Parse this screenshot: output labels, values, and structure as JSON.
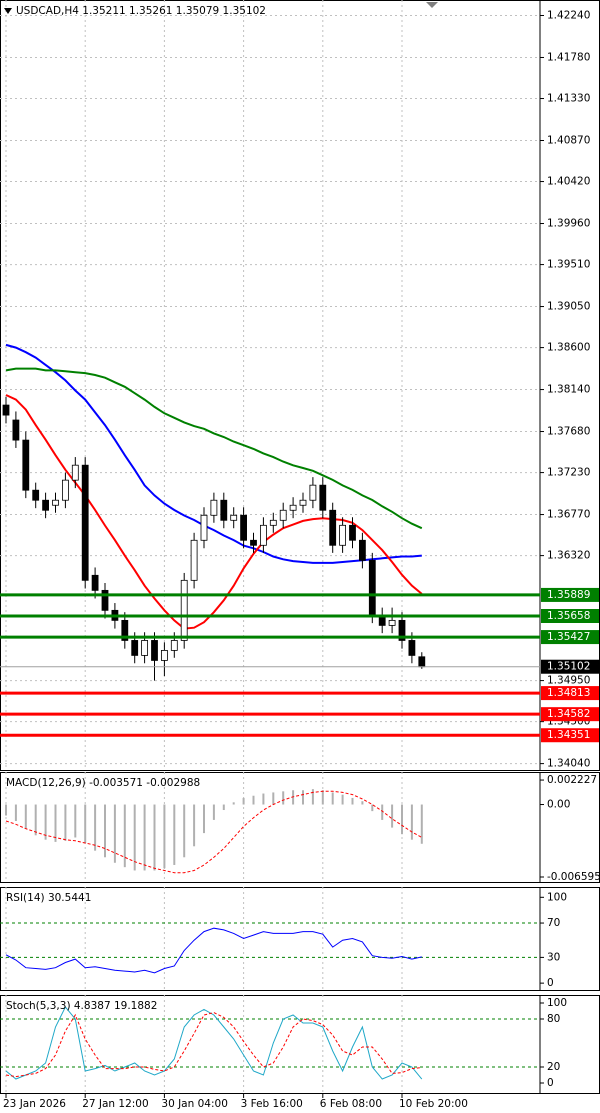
{
  "chart_data": [
    {
      "type": "candlestick",
      "title": "USDCAD,H4  1.35211 1.35261 1.35079 1.35102",
      "categories": [
        "23 Jan 2026",
        null,
        null,
        null,
        null,
        null,
        null,
        null,
        "27 Jan 12:00",
        null,
        null,
        null,
        null,
        null,
        null,
        null,
        "30 Jan 04:00",
        null,
        null,
        null,
        null,
        null,
        null,
        null,
        "3 Feb 16:00",
        null,
        null,
        null,
        null,
        null,
        null,
        null,
        "6 Feb 08:00",
        null,
        null,
        null,
        null,
        null,
        null,
        null,
        "10 Feb 20:00",
        null,
        null
      ],
      "open": [
        1.3797,
        1.37806,
        1.37586,
        1.37037,
        1.36927,
        1.36872,
        1.36927,
        1.37147,
        1.37311,
        1.36104,
        1.35939,
        1.3572,
        1.3561,
        1.3539,
        1.35226,
        1.3539,
        1.35171,
        1.35281,
        1.3539,
        1.36049,
        1.36488,
        1.36762,
        1.36927,
        1.36707,
        1.36762,
        1.36488,
        1.36433,
        1.36652,
        1.36707,
        1.36817,
        1.36872,
        1.36927,
        1.37092,
        1.36817,
        1.36433,
        1.36652,
        1.36488,
        1.36268,
        1.35665,
        1.35555,
        1.3561,
        1.3539,
        1.35211
      ],
      "high": [
        1.3806,
        1.379,
        1.3768,
        1.3712,
        1.3701,
        1.3701,
        1.3723,
        1.374,
        1.374,
        1.3619,
        1.3602,
        1.358,
        1.357,
        1.3548,
        1.3548,
        1.3548,
        1.3537,
        1.3548,
        1.3613,
        1.3657,
        1.3685,
        1.3701,
        1.3701,
        1.3685,
        1.3685,
        1.3657,
        1.3674,
        1.3679,
        1.369,
        1.3696,
        1.3701,
        1.3718,
        1.3718,
        1.369,
        1.3674,
        1.3674,
        1.3657,
        1.3635,
        1.3575,
        1.3575,
        1.357,
        1.3548,
        1.35261
      ],
      "low": [
        1.3777,
        1.375,
        1.3695,
        1.3684,
        1.3673,
        1.3679,
        1.3684,
        1.3706,
        1.3596,
        1.3585,
        1.3563,
        1.3552,
        1.353,
        1.3514,
        1.3514,
        1.3495,
        1.35,
        1.352,
        1.353,
        1.3596,
        1.364,
        1.3668,
        1.3662,
        1.3662,
        1.364,
        1.3635,
        1.3635,
        1.3657,
        1.3662,
        1.3673,
        1.3679,
        1.3684,
        1.3673,
        1.3635,
        1.3635,
        1.364,
        1.3618,
        1.3558,
        1.3547,
        1.3547,
        1.353,
        1.3514,
        1.35079
      ],
      "close": [
        1.3786,
        1.37586,
        1.37037,
        1.36927,
        1.36817,
        1.36927,
        1.37147,
        1.37311,
        1.36049,
        1.35939,
        1.3572,
        1.3561,
        1.3539,
        1.35226,
        1.3539,
        1.35171,
        1.35281,
        1.3539,
        1.36049,
        1.36488,
        1.36762,
        1.36927,
        1.36707,
        1.36762,
        1.36488,
        1.36433,
        1.36652,
        1.36707,
        1.36817,
        1.36872,
        1.36927,
        1.37092,
        1.36817,
        1.36433,
        1.36652,
        1.36488,
        1.36268,
        1.35665,
        1.35555,
        1.3561,
        1.3539,
        1.35226,
        1.35102
      ],
      "overlays": [
        {
          "color": "#0000ff",
          "values": [
            1.3863,
            1.386,
            1.3855,
            1.3849,
            1.3841,
            1.3833,
            1.3824,
            1.3813,
            1.3803,
            1.3789,
            1.3775,
            1.3759,
            1.3742,
            1.3726,
            1.3709,
            1.3698,
            1.3689,
            1.3682,
            1.3676,
            1.3671,
            1.3665,
            1.366,
            1.3654,
            1.3649,
            1.3643,
            1.364,
            1.3636,
            1.3631,
            1.3628,
            1.3626,
            1.3625,
            1.3624,
            1.3624,
            1.3624,
            1.3625,
            1.3626,
            1.3627,
            1.3628,
            1.3629,
            1.363,
            1.3631,
            1.3631,
            1.3632
          ]
        },
        {
          "color": "#008000",
          "values": [
            1.3835,
            1.3837,
            1.3837,
            1.3837,
            1.3835,
            1.3835,
            1.3834,
            1.3833,
            1.3832,
            1.383,
            1.3827,
            1.3822,
            1.3817,
            1.381,
            1.3803,
            1.3795,
            1.3788,
            1.3783,
            1.3778,
            1.3774,
            1.3771,
            1.3766,
            1.3762,
            1.3757,
            1.3753,
            1.3749,
            1.3744,
            1.374,
            1.3735,
            1.3731,
            1.3728,
            1.3725,
            1.372,
            1.3715,
            1.3709,
            1.3704,
            1.3698,
            1.3693,
            1.3686,
            1.368,
            1.3673,
            1.3667,
            1.3662
          ]
        },
        {
          "color": "#ff0000",
          "values": [
            1.3808,
            1.3803,
            1.3792,
            1.3775,
            1.3759,
            1.3742,
            1.3726,
            1.3712,
            1.3698,
            1.3682,
            1.3665,
            1.3649,
            1.3632,
            1.3616,
            1.3599,
            1.3585,
            1.3572,
            1.3561,
            1.3552,
            1.3553,
            1.3559,
            1.357,
            1.3583,
            1.3599,
            1.3618,
            1.3634,
            1.3647,
            1.3655,
            1.3662,
            1.3666,
            1.367,
            1.3672,
            1.3673,
            1.3672,
            1.3671,
            1.3668,
            1.366,
            1.3649,
            1.3638,
            1.3625,
            1.3611,
            1.3599,
            1.359
          ]
        }
      ],
      "levels": [
        {
          "value": 1.35889,
          "color": "#008000"
        },
        {
          "value": 1.35658,
          "color": "#008000"
        },
        {
          "value": 1.35427,
          "color": "#008000"
        },
        {
          "value": 1.34813,
          "color": "#ff0000"
        },
        {
          "value": 1.34582,
          "color": "#ff0000"
        },
        {
          "value": 1.34351,
          "color": "#ff0000"
        }
      ],
      "ylim": [
        1.3397,
        1.4241
      ],
      "yticks": [
        {
          "value": 1.4224,
          "label": "1.42240"
        },
        {
          "value": 1.4178,
          "label": "1.41780"
        },
        {
          "value": 1.4133,
          "label": "1.41330"
        },
        {
          "value": 1.4087,
          "label": "1.40870"
        },
        {
          "value": 1.4042,
          "label": "1.40420"
        },
        {
          "value": 1.3996,
          "label": "1.39960"
        },
        {
          "value": 1.3951,
          "label": "1.39510"
        },
        {
          "value": 1.3905,
          "label": "1.39050"
        },
        {
          "value": 1.386,
          "label": "1.38600"
        },
        {
          "value": 1.3814,
          "label": "1.38140"
        },
        {
          "value": 1.3768,
          "label": "1.37680"
        },
        {
          "value": 1.3723,
          "label": "1.37230"
        },
        {
          "value": 1.3677,
          "label": "1.36770"
        },
        {
          "value": 1.3632,
          "label": "1.36320"
        },
        {
          "value": 1.3495,
          "label": "1.34950"
        },
        {
          "value": 1.345,
          "label": "1.34500"
        },
        {
          "value": 1.3404,
          "label": "1.34040"
        }
      ],
      "grid": true
    },
    {
      "type": "macd",
      "title": "MACD(12,26,9) -0.003571 -0.002988",
      "histogram": [
        -0.001,
        -0.0015,
        -0.0022,
        -0.0028,
        -0.0032,
        -0.0034,
        -0.0033,
        -0.003,
        -0.0035,
        -0.0042,
        -0.0048,
        -0.0053,
        -0.0057,
        -0.006,
        -0.006,
        -0.006,
        -0.0058,
        -0.0055,
        -0.0048,
        -0.0038,
        -0.0026,
        -0.0014,
        -0.0005,
        0.0002,
        0.0006,
        0.0008,
        0.001,
        0.0011,
        0.0012,
        0.0013,
        0.0013,
        0.0014,
        0.0013,
        0.0011,
        0.0009,
        0.0006,
        0.0003,
        -0.0006,
        -0.0014,
        -0.0021,
        -0.0027,
        -0.0032,
        -0.003571
      ],
      "signal": [
        -0.0015,
        -0.0018,
        -0.0022,
        -0.0025,
        -0.0028,
        -0.003,
        -0.0032,
        -0.0033,
        -0.0035,
        -0.0037,
        -0.004,
        -0.0044,
        -0.0048,
        -0.0052,
        -0.0055,
        -0.0058,
        -0.006,
        -0.0062,
        -0.0062,
        -0.006,
        -0.0055,
        -0.0048,
        -0.004,
        -0.003,
        -0.002,
        -0.0012,
        -0.0005,
        0.0,
        0.0004,
        0.0007,
        0.0009,
        0.0011,
        0.0012,
        0.0012,
        0.0011,
        0.0009,
        0.0005,
        0.0,
        -0.0006,
        -0.0013,
        -0.0019,
        -0.0025,
        -0.002988
      ],
      "histogram_color": "#b0b0b0",
      "signal_color": "#ff0000",
      "ylim": [
        -0.00705,
        0.00296
      ],
      "yticks": [
        0.002227,
        {
          "value": 0,
          "label": "0.00"
        },
        -0.006595
      ]
    },
    {
      "type": "line",
      "title": "RSI(14) 30.5441",
      "values": [
        33,
        27,
        18,
        17,
        16,
        18,
        24,
        28,
        18,
        19,
        17,
        15,
        14,
        13,
        15,
        12,
        17,
        20,
        38,
        50,
        60,
        64,
        62,
        58,
        52,
        56,
        60,
        58,
        58,
        58,
        60,
        60,
        57,
        42,
        50,
        52,
        48,
        32,
        30,
        29,
        31,
        28,
        30.5441
      ],
      "color": "#0000ff",
      "ylim": [
        -8,
        112
      ],
      "yticks": [
        0,
        30,
        70,
        100
      ],
      "levels": [
        30,
        70
      ]
    },
    {
      "type": "stochastic",
      "title": "Stoch(5,3,3) 4.8387 19.1882",
      "k": [
        15,
        5,
        10,
        15,
        25,
        70,
        95,
        80,
        15,
        18,
        22,
        15,
        20,
        25,
        15,
        10,
        15,
        30,
        70,
        85,
        92,
        85,
        70,
        55,
        35,
        15,
        10,
        50,
        80,
        85,
        75,
        75,
        70,
        40,
        15,
        45,
        70,
        20,
        5,
        10,
        25,
        20,
        4.8387
      ],
      "d": [
        10,
        8,
        10,
        12,
        18,
        35,
        65,
        85,
        55,
        35,
        18,
        18,
        18,
        20,
        20,
        17,
        15,
        20,
        40,
        62,
        85,
        88,
        82,
        70,
        52,
        35,
        20,
        25,
        45,
        70,
        80,
        78,
        73,
        60,
        40,
        35,
        45,
        45,
        30,
        12,
        13,
        18,
        19.1882
      ],
      "k_color": "#20a8c8",
      "d_color": "#ff0000",
      "ylim": [
        -12.5,
        110
      ],
      "yticks": [
        0,
        20,
        80,
        100
      ],
      "levels": [
        20,
        80
      ]
    }
  ]
}
